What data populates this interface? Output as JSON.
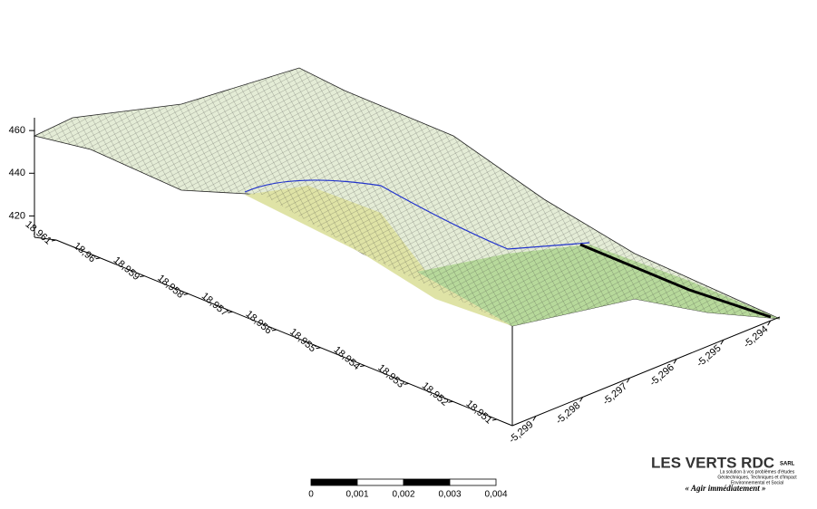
{
  "chart_data": {
    "type": "surface",
    "zlim": [
      410,
      466
    ],
    "zticks": [
      460,
      440,
      420
    ],
    "xlim": [
      18.951,
      18.961
    ],
    "xticks": [
      {
        "value": 18.961,
        "label": "18,961"
      },
      {
        "value": 18.96,
        "label": "18,96"
      },
      {
        "value": 18.959,
        "label": "18,959"
      },
      {
        "value": 18.958,
        "label": "18,958"
      },
      {
        "value": 18.957,
        "label": "18,957"
      },
      {
        "value": 18.956,
        "label": "18,956"
      },
      {
        "value": 18.955,
        "label": "18,955"
      },
      {
        "value": 18.954,
        "label": "18,954"
      },
      {
        "value": 18.953,
        "label": "18,953"
      },
      {
        "value": 18.952,
        "label": "18,952"
      },
      {
        "value": 18.951,
        "label": "18,951"
      }
    ],
    "ylim": [
      -5.2995,
      -5.2938
    ],
    "yticks": [
      {
        "value": -5.299,
        "label": "-5,299"
      },
      {
        "value": -5.298,
        "label": "-5,298"
      },
      {
        "value": -5.297,
        "label": "-5,297"
      },
      {
        "value": -5.296,
        "label": "-5,296"
      },
      {
        "value": -5.295,
        "label": "-5,295"
      },
      {
        "value": -5.294,
        "label": "-5,294"
      }
    ],
    "scale_bar": {
      "lim": [
        0,
        0.004
      ],
      "ticks": [
        0,
        {
          "value": 0.001,
          "label": "0,001"
        },
        {
          "value": 0.002,
          "label": "0,002"
        },
        {
          "value": 0.003,
          "label": "0,003"
        },
        {
          "value": 0.004,
          "label": "0,004"
        }
      ]
    }
  },
  "logo": {
    "name": "LES VERTS RDC",
    "suffix": "SARL",
    "tagline_1": "La solution à vos problèmes d'études",
    "tagline_2": "Géotechniques, Techniques et d'Impact",
    "tagline_3": "Environnemental et Social",
    "motto": "« Agir immédiatement »"
  }
}
